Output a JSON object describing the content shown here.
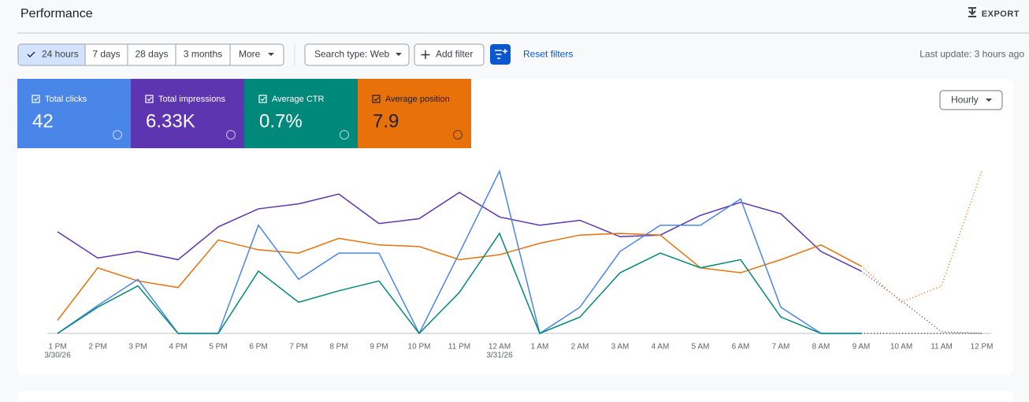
{
  "header": {
    "title": "Performance",
    "export": "EXPORT"
  },
  "toolbar": {
    "ranges": [
      "24 hours",
      "7 days",
      "28 days",
      "3 months",
      "More"
    ],
    "search_type": "Search type: Web",
    "add_filter": "Add filter",
    "reset": "Reset filters",
    "last_update": "Last update: 3 hours ago"
  },
  "granularity": "Hourly",
  "chart_data": {
    "type": "line",
    "ylim": [
      0,
      100
    ],
    "categories": [
      {
        "label": "1 PM",
        "date": "3/30/26"
      },
      "2 PM",
      "3 PM",
      "4 PM",
      "5 PM",
      "6 PM",
      "7 PM",
      "8 PM",
      "9 PM",
      "10 PM",
      "11 PM",
      {
        "label": "12 AM",
        "date": "3/31/26"
      },
      "1 AM",
      "2 AM",
      "3 AM",
      "4 AM",
      "5 AM",
      "6 AM",
      "7 AM",
      "8 AM",
      "9 AM",
      "10 AM",
      "11 AM",
      "12 PM"
    ],
    "series": [
      {
        "name": "Total clicks",
        "total": "42",
        "color": "#4a86e8",
        "values": [
          0,
          17,
          33,
          0,
          0,
          66,
          33,
          49,
          49,
          0,
          49,
          99,
          0,
          16,
          50,
          66,
          66,
          82,
          16,
          0,
          0,
          0,
          0,
          0
        ]
      },
      {
        "name": "Total impressions",
        "total": "6.33K",
        "color": "#5e35b1",
        "values": [
          62,
          46,
          50,
          45,
          65,
          76,
          79,
          85,
          67,
          70,
          86,
          71,
          66,
          69,
          59,
          60,
          72,
          80,
          73,
          50,
          38,
          20,
          1,
          0
        ]
      },
      {
        "name": "Average CTR",
        "total": "0.7%",
        "color": "#00897b",
        "values": [
          0,
          16,
          29,
          0,
          0,
          38,
          19,
          26,
          32,
          0,
          25,
          61,
          0,
          10,
          37,
          49,
          40,
          45,
          10,
          0,
          0,
          0,
          0,
          0
        ]
      },
      {
        "name": "Average position",
        "total": "7.9",
        "color": "#e8710a",
        "values": [
          8,
          40,
          32,
          28,
          57,
          51,
          49,
          58,
          54,
          53,
          45,
          48,
          55,
          60,
          61,
          60,
          40,
          37,
          45,
          54,
          41,
          19,
          29,
          99
        ]
      }
    ]
  }
}
